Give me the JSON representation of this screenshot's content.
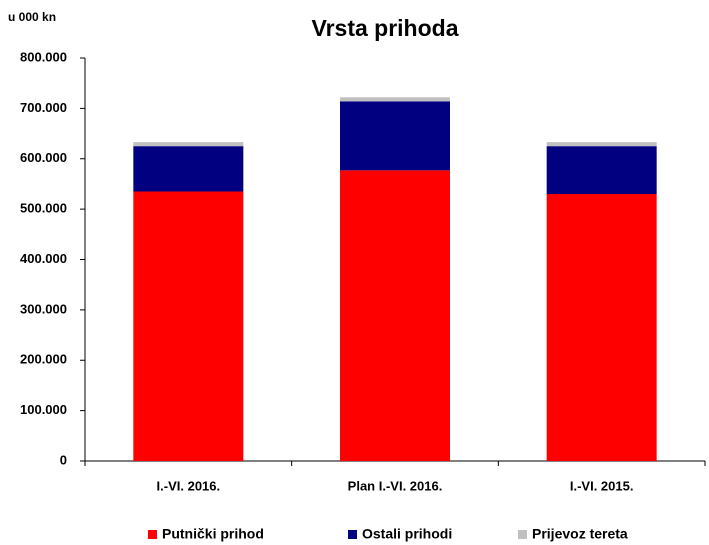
{
  "chart_data": {
    "type": "stacked_bar",
    "title": "Vrsta prihoda",
    "y_label": "u 000 kn",
    "categories": [
      "I.-VI. 2016.",
      "Plan I.-VI. 2016.",
      "I.-VI. 2015."
    ],
    "series": [
      {
        "name": "Putnički prihod",
        "color": "#ff0000",
        "values": [
          535000,
          577000,
          530000
        ]
      },
      {
        "name": "Ostali prihodi",
        "color": "#000080",
        "values": [
          90000,
          137000,
          95000
        ]
      },
      {
        "name": "Prijevoz tereta",
        "color": "#c0c0c0",
        "values": [
          8000,
          8000,
          8000
        ]
      }
    ],
    "ylim": [
      0,
      800000
    ],
    "yticks": [
      0,
      {
        "value": 100000,
        "label": "100.000"
      },
      {
        "value": 200000,
        "label": "200.000"
      },
      {
        "value": 300000,
        "label": "300.000"
      },
      {
        "value": 400000,
        "label": "400.000"
      },
      {
        "value": 500000,
        "label": "500.000"
      },
      {
        "value": 600000,
        "label": "600.000"
      },
      {
        "value": 700000,
        "label": "700.000"
      },
      {
        "value": 800000,
        "label": "800.000"
      }
    ],
    "legend": "bottom"
  }
}
